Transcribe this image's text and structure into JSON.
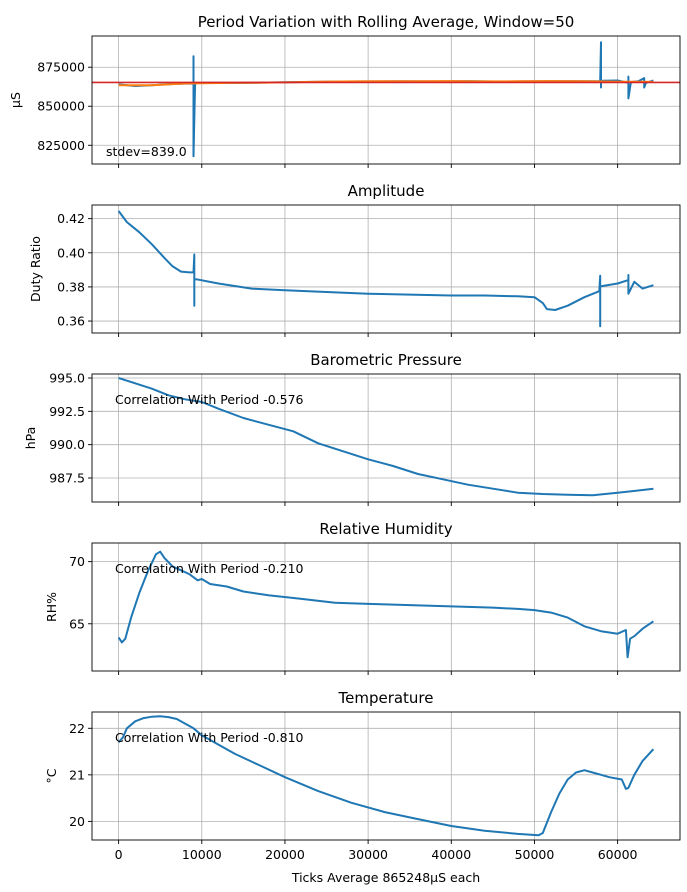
{
  "chart_data": [
    {
      "type": "line",
      "title": "Period Variation with Rolling Average, Window=50",
      "ylabel": "µS",
      "xlim": [
        -3200,
        67500
      ],
      "ylim": [
        813000,
        895000
      ],
      "yticks": [
        825000,
        850000,
        875000
      ],
      "ytick_labels": [
        "825000",
        "850000",
        "875000"
      ],
      "hline": {
        "y": 865248,
        "color": "#d62728"
      },
      "annotation": "stdev=839.0",
      "series": [
        {
          "color": "#1f77b4",
          "x": [
            0,
            2000,
            4000,
            6000,
            8000,
            9000,
            9000,
            9000,
            9200,
            11000,
            14000,
            18000,
            22000,
            26000,
            30000,
            34000,
            38000,
            42000,
            46000,
            50000,
            54000,
            57900,
            58000,
            58000,
            58000,
            58200,
            60000,
            61300,
            61300,
            61300,
            61600,
            62500,
            63200,
            63200,
            63400,
            64000,
            64300
          ],
          "y": [
            864000,
            863000,
            863500,
            864200,
            864500,
            864600,
            882000,
            818000,
            864800,
            865000,
            864900,
            865200,
            865500,
            865800,
            865900,
            866000,
            865900,
            866100,
            865800,
            866000,
            866100,
            866000,
            891000,
            862000,
            866000,
            866300,
            866500,
            865000,
            869000,
            855000,
            865500,
            866000,
            868000,
            862000,
            865000,
            866000,
            866500
          ]
        },
        {
          "color": "#ff7f0e",
          "x": [
            0,
            4000,
            8000,
            12000,
            16000,
            20000,
            24000,
            28000,
            32000,
            36000,
            40000,
            44000,
            48000,
            52000,
            56000,
            60000,
            64300
          ],
          "y": [
            863500,
            863500,
            864600,
            864900,
            865000,
            865300,
            865700,
            865900,
            866000,
            866000,
            866100,
            865900,
            866000,
            866100,
            866000,
            865700,
            865600
          ]
        }
      ]
    },
    {
      "type": "line",
      "title": "Amplitude",
      "ylabel": "Duty Ratio",
      "xlim": [
        -3200,
        67500
      ],
      "ylim": [
        0.353,
        0.428
      ],
      "yticks": [
        0.36,
        0.38,
        0.4,
        0.42
      ],
      "ytick_labels": [
        "0.36",
        "0.38",
        "0.40",
        "0.42"
      ],
      "series": [
        {
          "color": "#1f77b4",
          "x": [
            0,
            1000,
            2500,
            4000,
            5500,
            6500,
            7500,
            8500,
            9000,
            9100,
            9100,
            9100,
            9300,
            12000,
            16000,
            20000,
            25000,
            30000,
            35000,
            40000,
            44000,
            48000,
            50000,
            51000,
            51500,
            52500,
            54000,
            56000,
            57800,
            57900,
            57900,
            57900,
            58100,
            60000,
            61300,
            61300,
            61300,
            62000,
            63000,
            64300
          ],
          "y": [
            0.4245,
            0.418,
            0.412,
            0.405,
            0.397,
            0.392,
            0.389,
            0.3885,
            0.3885,
            0.399,
            0.369,
            0.384,
            0.3845,
            0.382,
            0.379,
            0.378,
            0.377,
            0.376,
            0.3755,
            0.375,
            0.375,
            0.3745,
            0.374,
            0.3705,
            0.367,
            0.3665,
            0.369,
            0.374,
            0.3775,
            0.3865,
            0.357,
            0.38,
            0.3805,
            0.382,
            0.384,
            0.387,
            0.376,
            0.383,
            0.379,
            0.381
          ]
        }
      ]
    },
    {
      "type": "line",
      "title": "Barometric Pressure",
      "ylabel": "hPa",
      "xlim": [
        -3200,
        67500
      ],
      "ylim": [
        985.7,
        995.3
      ],
      "yticks": [
        987.5,
        990.0,
        992.5,
        995.0
      ],
      "ytick_labels": [
        "987.5",
        "990.0",
        "992.5",
        "995.0"
      ],
      "annotation": "Correlation With Period -0.576",
      "series": [
        {
          "color": "#1f77b4",
          "x": [
            0,
            2000,
            4000,
            6000,
            8000,
            10000,
            12000,
            15000,
            18000,
            21000,
            24000,
            27000,
            30000,
            33000,
            36000,
            39000,
            42000,
            45000,
            48000,
            51000,
            54000,
            57000,
            60000,
            63000,
            64300
          ],
          "y": [
            995.0,
            994.6,
            994.2,
            993.7,
            993.4,
            993.2,
            992.7,
            992.0,
            991.5,
            991.0,
            990.1,
            989.5,
            988.9,
            988.4,
            987.8,
            987.4,
            987.0,
            986.7,
            986.4,
            986.3,
            986.25,
            986.2,
            986.4,
            986.6,
            986.7
          ]
        }
      ]
    },
    {
      "type": "line",
      "title": "Relative Humidity",
      "ylabel": "RH%",
      "xlim": [
        -3200,
        67500
      ],
      "ylim": [
        61.2,
        71.5
      ],
      "yticks": [
        65,
        70
      ],
      "ytick_labels": [
        "65",
        "70"
      ],
      "annotation": "Correlation With Period -0.210",
      "series": [
        {
          "color": "#1f77b4",
          "x": [
            0,
            400,
            800,
            1500,
            2500,
            3500,
            4500,
            5000,
            5500,
            6500,
            7500,
            8500,
            9500,
            10000,
            11000,
            13000,
            15000,
            18000,
            22000,
            26000,
            30000,
            35000,
            40000,
            45000,
            48000,
            50000,
            52000,
            54000,
            56000,
            58000,
            60000,
            61000,
            61200,
            61500,
            62000,
            63000,
            64300
          ],
          "y": [
            63.9,
            63.5,
            63.8,
            65.5,
            67.5,
            69.2,
            70.6,
            70.8,
            70.3,
            69.6,
            69.3,
            69.0,
            68.5,
            68.6,
            68.2,
            68.0,
            67.6,
            67.3,
            67.0,
            66.7,
            66.6,
            66.5,
            66.4,
            66.3,
            66.2,
            66.1,
            65.9,
            65.5,
            64.8,
            64.4,
            64.2,
            64.5,
            62.3,
            63.8,
            64.0,
            64.6,
            65.2
          ]
        }
      ]
    },
    {
      "type": "line",
      "title": "Temperature",
      "ylabel": "°C",
      "xlim": [
        -3200,
        67500
      ],
      "ylim": [
        19.6,
        22.35
      ],
      "yticks": [
        20,
        21,
        22
      ],
      "ytick_labels": [
        "20",
        "21",
        "22"
      ],
      "xlabel": "Ticks Average 865248µS each",
      "xticks": [
        0,
        10000,
        20000,
        30000,
        40000,
        50000,
        60000
      ],
      "xtick_labels": [
        "0",
        "10000",
        "20000",
        "30000",
        "40000",
        "50000",
        "60000"
      ],
      "annotation": "Correlation With Period -0.810",
      "series": [
        {
          "color": "#1f77b4",
          "x": [
            0,
            500,
            1000,
            2000,
            3000,
            4000,
            5000,
            6000,
            7000,
            8000,
            9000,
            10000,
            12000,
            14000,
            17000,
            20000,
            24000,
            28000,
            32000,
            36000,
            40000,
            44000,
            48000,
            50500,
            51000,
            52000,
            53000,
            54000,
            55000,
            56000,
            57000,
            58000,
            59000,
            60500,
            61000,
            61300,
            62000,
            63000,
            64300
          ],
          "y": [
            21.7,
            21.8,
            22.0,
            22.15,
            22.22,
            22.25,
            22.26,
            22.24,
            22.2,
            22.1,
            22.0,
            21.85,
            21.65,
            21.45,
            21.2,
            20.95,
            20.65,
            20.4,
            20.2,
            20.05,
            19.9,
            19.8,
            19.73,
            19.7,
            19.75,
            20.2,
            20.6,
            20.9,
            21.05,
            21.1,
            21.05,
            21.0,
            20.95,
            20.9,
            20.7,
            20.72,
            21.0,
            21.3,
            21.55
          ]
        }
      ]
    }
  ]
}
